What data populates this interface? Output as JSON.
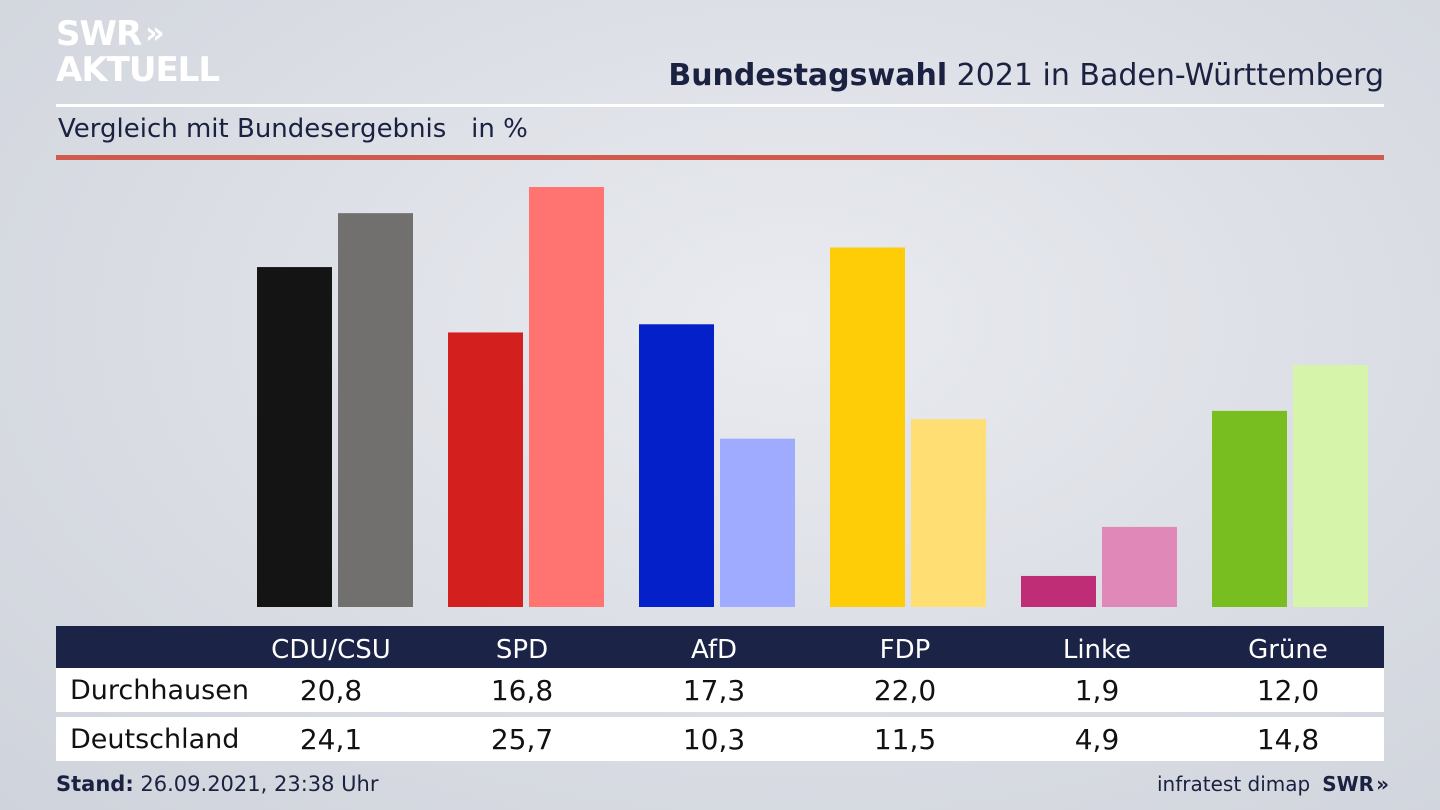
{
  "logo": {
    "line1": "SWR",
    "arrows": "»",
    "line2": "AKTUELL"
  },
  "header": {
    "title_bold": "Bundestagswahl",
    "title_rest": " 2021 in Baden-Württemberg",
    "subtitle": "Vergleich mit Bundesergebnis   in %"
  },
  "chart_data": {
    "type": "bar",
    "categories": [
      "CDU/CSU",
      "SPD",
      "AfD",
      "FDP",
      "Linke",
      "Grüne"
    ],
    "series": [
      {
        "name": "Durchhausen",
        "values": [
          20.8,
          16.8,
          17.3,
          22.0,
          1.9,
          12.0
        ]
      },
      {
        "name": "Deutschland",
        "values": [
          24.1,
          25.7,
          10.3,
          11.5,
          4.9,
          14.8
        ]
      }
    ],
    "colors": {
      "Durchhausen": [
        "#141414",
        "#d41f1f",
        "#0420c8",
        "#ffcc08",
        "#be2d76",
        "#78be20"
      ],
      "Deutschland": [
        "#72706f",
        "#ff7470",
        "#9fabff",
        "#ffdf73",
        "#e089b8",
        "#d6f5aa"
      ]
    },
    "ylim": [
      0,
      26
    ]
  },
  "table": {
    "headers": [
      "CDU/CSU",
      "SPD",
      "AfD",
      "FDP",
      "Linke",
      "Grüne"
    ],
    "rows": [
      {
        "label": "Durchhausen",
        "values": [
          "20,8",
          "16,8",
          "17,3",
          "22,0",
          "1,9",
          "12,0"
        ]
      },
      {
        "label": "Deutschland",
        "values": [
          "24,1",
          "25,7",
          "10,3",
          "11,5",
          "4,9",
          "14,8"
        ]
      }
    ]
  },
  "footer": {
    "stand_label": "Stand:",
    "stand_value": " 26.09.2021, 23:38 Uhr",
    "source": "infratest dimap",
    "brand": "SWR",
    "brand_arrows": "»"
  }
}
